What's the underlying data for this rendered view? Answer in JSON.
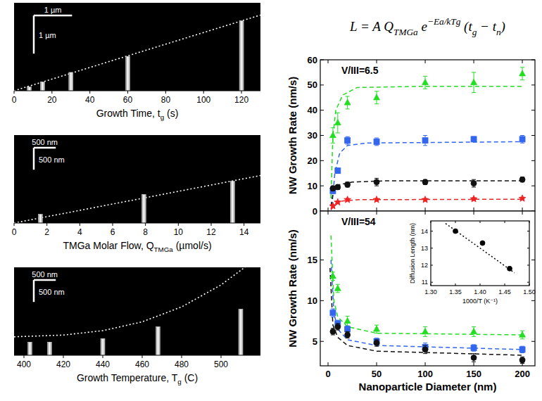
{
  "chart_data": [
    {
      "type": "bar",
      "x": [
        8,
        15,
        30,
        60,
        120
      ],
      "values": [
        0.1,
        0.23,
        0.48,
        0.9,
        1.83
      ],
      "color": "#d8d8d8",
      "xlim": [
        0,
        130
      ],
      "xticks": [
        0,
        20,
        40,
        60,
        80,
        100,
        120
      ],
      "ylim": [
        0,
        2.3
      ],
      "tick_labels": "x",
      "xlabel": [
        "Growth Time, t",
        {
          "sub": "g"
        },
        " (s)"
      ],
      "scale_bar": {
        "value": 1,
        "labels": [
          "1 µm",
          "1 µm"
        ]
      },
      "fit": {
        "x": [
          0,
          130
        ],
        "values": [
          0,
          1.98
        ],
        "color": "#ffffff",
        "line_style": "dotted"
      }
    },
    {
      "type": "bar",
      "x": [
        1.6,
        7.9,
        13.3
      ],
      "values": [
        200,
        650,
        950
      ],
      "color": "#d8d8d8",
      "xlim": [
        0,
        15
      ],
      "xticks": [
        0,
        2,
        4,
        6,
        8,
        10,
        12,
        14
      ],
      "ylim": [
        0,
        2000
      ],
      "tick_labels": "x",
      "xlabel": [
        "TMGa Molar Flow, Q",
        {
          "sub": "TMGa"
        },
        " (µmol/s)"
      ],
      "scale_bar": {
        "value": 500,
        "labels": [
          "500 nm",
          "500 nm"
        ]
      },
      "fit": {
        "x": [
          0,
          15
        ],
        "values": [
          0,
          1080
        ],
        "color": "#ffffff",
        "line_style": "dotted"
      }
    },
    {
      "type": "bar",
      "x": [
        403,
        413,
        440,
        468,
        510
      ],
      "values": [
        300,
        300,
        380,
        650,
        1050
      ],
      "color": "#d8d8d8",
      "xlim": [
        395,
        520
      ],
      "xticks": [
        400,
        420,
        440,
        460,
        480,
        500
      ],
      "ylim": [
        0,
        2000
      ],
      "tick_labels": "x",
      "xlabel": [
        "Growth Temperature, T",
        {
          "sub": "g"
        },
        " (C)"
      ],
      "scale_bar": {
        "value": 500,
        "labels": [
          "500 nm",
          "500 nm"
        ]
      },
      "fit": {
        "x": [
          395,
          420,
          440,
          460,
          480,
          500,
          515
        ],
        "values": [
          420,
          460,
          560,
          760,
          1100,
          1600,
          2100
        ],
        "color": "#ffffff",
        "line_style": "dotted"
      }
    },
    {
      "type": "scatter",
      "title": [
        "L = A Q",
        {
          "sub": "TMGa"
        },
        " e",
        {
          "sup": "−Ea/kTg"
        },
        " (t",
        {
          "sub": "g"
        },
        " − t",
        {
          "sub": "n"
        },
        ")"
      ],
      "annotations": [
        "V/III=6.5"
      ],
      "ylabel": "NW Growth Rate (nm/s)",
      "x": [
        5,
        10,
        20,
        50,
        100,
        150,
        200
      ],
      "xlim": [
        -8,
        213
      ],
      "xticks": [
        0,
        50,
        100,
        150,
        200
      ],
      "ylim": [
        0,
        60
      ],
      "yticks": [
        0,
        10,
        20,
        30,
        40,
        50,
        60
      ],
      "tick_labels": "y",
      "series": [
        {
          "color": "#22dd22",
          "marker": "triangle",
          "line_style": "dashed",
          "values": [
            30,
            35,
            43,
            45,
            51,
            51,
            54.5
          ],
          "errors": [
            3,
            4,
            2.5,
            2.5,
            2.5,
            4,
            2.5
          ],
          "fit": {
            "x": [
              3,
              5,
              8,
              15,
              30,
              100,
              200
            ],
            "values": [
              5,
              30,
              40,
              46,
              49,
              49.5,
              49.5
            ]
          }
        },
        {
          "color": "#3366ee",
          "marker": "square",
          "line_style": "dashed",
          "values": [
            8,
            16,
            28,
            27.5,
            28,
            28.5,
            28.5
          ],
          "errors": [
            1,
            1,
            1.5,
            1.5,
            2,
            1,
            1.5
          ],
          "fit": {
            "x": [
              4,
              7,
              12,
              20,
              40,
              200
            ],
            "values": [
              2,
              15,
              23,
              26,
              27,
              27.5
            ]
          }
        },
        {
          "color": "#111111",
          "marker": "circle",
          "line_style": "dashed",
          "values": [
            9,
            9.5,
            10.5,
            11.5,
            11.5,
            11,
            12.5
          ],
          "errors": [
            1,
            1,
            1,
            1.5,
            1,
            1.5,
            1
          ],
          "fit": {
            "x": [
              3,
              6,
              12,
              25,
              60,
              200
            ],
            "values": [
              2,
              9,
              10.5,
              11.5,
              12,
              12
            ]
          }
        },
        {
          "color": "#ee2222",
          "marker": "star",
          "line_style": "dashed",
          "values": [
            2,
            3.5,
            4.5,
            4.5,
            4.5,
            4.8,
            5
          ],
          "errors": [
            0.5,
            0.5,
            0.5,
            0.5,
            0.5,
            0.5,
            0.5
          ],
          "fit": {
            "x": [
              3,
              8,
              15,
              30,
              200
            ],
            "values": [
              0.5,
              3,
              4,
              4.5,
              4.7
            ]
          }
        }
      ]
    },
    {
      "type": "scatter",
      "annotations": [
        "V/III=54"
      ],
      "ylabel": "NW Growth Rate (nm/s)",
      "xlabel": "Nanoparticle Diameter (nm)",
      "x": [
        5,
        10,
        20,
        50,
        100,
        150,
        200
      ],
      "xlim": [
        -8,
        213
      ],
      "xticks": [
        0,
        50,
        100,
        150,
        200
      ],
      "ylim": [
        2,
        21
      ],
      "yticks": [
        5,
        10,
        15
      ],
      "series": [
        {
          "color": "#22dd22",
          "marker": "triangle",
          "line_style": "dashed",
          "values": [
            13,
            11.5,
            7.5,
            6.5,
            6.2,
            6.2,
            5.8
          ],
          "errors": [
            0.5,
            0.5,
            0.6,
            0.5,
            0.6,
            0.6,
            0.5
          ],
          "fit": {
            "x": [
              3,
              6,
              10,
              20,
              50,
              200
            ],
            "values": [
              18,
              10,
              8,
              6.8,
              6,
              5.8
            ]
          }
        },
        {
          "color": "#3366ee",
          "marker": "square",
          "line_style": "dashed",
          "values": [
            8.5,
            7.2,
            6.5,
            5,
            4.3,
            4.2,
            4
          ],
          "errors": [
            0.5,
            0.4,
            0.4,
            0.4,
            0.5,
            0.4,
            0.4
          ],
          "fit": {
            "x": [
              3,
              6,
              10,
              20,
              50,
              200
            ],
            "values": [
              15,
              8.5,
              6.5,
              5.2,
              4.5,
              4
            ]
          }
        },
        {
          "color": "#111111",
          "marker": "circle",
          "line_style": "dashed",
          "values": [
            6.2,
            6.8,
            5.8,
            4.8,
            4,
            3,
            2.7
          ],
          "errors": [
            0.4,
            0.4,
            0.4,
            0.4,
            0.5,
            0.5,
            0.4
          ],
          "fit": {
            "x": [
              2,
              5,
              10,
              20,
              50,
              200
            ],
            "values": [
              14,
              7,
              5.5,
              4.5,
              3.8,
              3.3
            ]
          }
        }
      ]
    },
    {
      "type": "scatter",
      "xlabel": "1000/T (K⁻¹)",
      "ylabel": "Diffusion Length (nm)",
      "x": [
        1.35,
        1.405,
        1.46
      ],
      "values": [
        14.0,
        13.3,
        11.8
      ],
      "color": "#000000",
      "marker": "circle",
      "line_style": "dotted",
      "fit": {
        "x": [
          1.33,
          1.47
        ],
        "values": [
          14.45,
          11.55
        ]
      },
      "xlim": [
        1.3,
        1.5
      ],
      "xticks": [
        {
          "value": 1.3,
          "label": "1.30"
        },
        1.35,
        {
          "value": 1.4,
          "label": "1.40"
        },
        1.45,
        {
          "value": 1.5,
          "label": "1.50"
        }
      ],
      "ylim": [
        10.8,
        14.6
      ],
      "yticks": [
        11,
        12,
        13,
        14
      ]
    }
  ]
}
